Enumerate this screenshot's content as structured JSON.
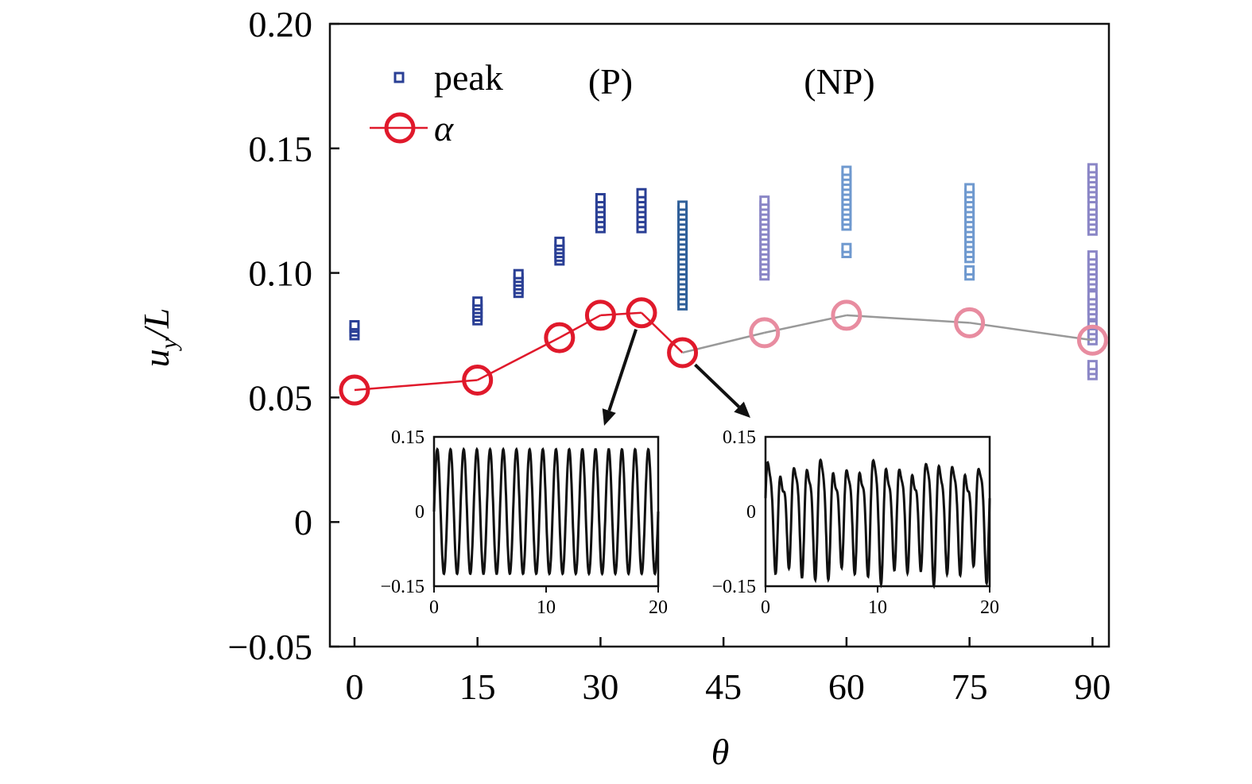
{
  "chart_data": {
    "type": "scatter",
    "xlabel": "θ",
    "ylabel_main": "u",
    "ylabel_sub": "y",
    "ylabel_tail": "/L",
    "xlim": [
      -3,
      92
    ],
    "ylim": [
      -0.05,
      0.2
    ],
    "x_ticks": [
      0,
      15,
      30,
      45,
      60,
      75,
      90
    ],
    "x_tick_labels": [
      "0",
      "15",
      "30",
      "45",
      "60",
      "75",
      "90"
    ],
    "y_ticks": [
      -0.05,
      0,
      0.05,
      0.1,
      0.15,
      0.2
    ],
    "y_tick_labels": [
      "−0.05",
      "0",
      "0.05",
      "0.10",
      "0.15",
      "0.20"
    ],
    "region_labels": [
      {
        "text": "(P)",
        "x": 32,
        "y": 0.18
      },
      {
        "text": "(NP)",
        "x": 59.5,
        "y": 0.18
      }
    ],
    "legend": {
      "placement": "top-left",
      "entries": [
        {
          "label": "peak",
          "marker": "small-square",
          "color": "#2a3f95"
        },
        {
          "label": "α",
          "marker": "circle-line",
          "color": "#e0192b"
        }
      ]
    },
    "series": [
      {
        "name": "α",
        "type": "line",
        "x": [
          0,
          15,
          25,
          30,
          35,
          40,
          50,
          60,
          75,
          90
        ],
        "y": [
          0.053,
          0.057,
          0.074,
          0.083,
          0.084,
          0.068,
          0.076,
          0.083,
          0.08,
          0.073
        ],
        "colors": [
          "#e0192b",
          "#e0192b",
          "#e0192b",
          "#e0192b",
          "#e0192b",
          "#e0192b",
          "#e88ca0",
          "#e88ca0",
          "#e88ca0",
          "#e88ca0"
        ],
        "segment_colors": [
          "#e0192b",
          "#e0192b",
          "#e0192b",
          "#e0192b",
          "#e0192b",
          "#999999",
          "#999999",
          "#999999",
          "#999999"
        ]
      },
      {
        "name": "peak",
        "type": "scatter",
        "points": [
          {
            "x": 0,
            "y": [
              0.075,
              0.0765,
              0.078,
              0.079
            ],
            "color": "#2a3f95"
          },
          {
            "x": 15,
            "y": [
              0.081,
              0.0825,
              0.084,
              0.0855,
              0.087,
              0.0885
            ],
            "color": "#2a3f95"
          },
          {
            "x": 20,
            "y": [
              0.092,
              0.0935,
              0.095,
              0.0965,
              0.098,
              0.0995
            ],
            "color": "#2a3f95"
          },
          {
            "x": 25,
            "y": [
              0.105,
              0.1065,
              0.108,
              0.1095,
              0.111,
              0.1125
            ],
            "color": "#2a3f95"
          },
          {
            "x": 30,
            "y": [
              0.118,
              0.12,
              0.122,
              0.124,
              0.126,
              0.128,
              0.13
            ],
            "color": "#2a3f95"
          },
          {
            "x": 35,
            "y": [
              0.118,
              0.12,
              0.122,
              0.124,
              0.126,
              0.128,
              0.13,
              0.132
            ],
            "color": "#2a3f95"
          },
          {
            "x": 40,
            "y": [
              0.087,
              0.089,
              0.091,
              0.093,
              0.095,
              0.097,
              0.099,
              0.101,
              0.103,
              0.105,
              0.107,
              0.109,
              0.111,
              0.113,
              0.115,
              0.117,
              0.119,
              0.121,
              0.123,
              0.125,
              0.127
            ],
            "color": "#2f5f99"
          },
          {
            "x": 50,
            "y": [
              0.099,
              0.101,
              0.103,
              0.105,
              0.107,
              0.109,
              0.111,
              0.113,
              0.115,
              0.117,
              0.119,
              0.121,
              0.123,
              0.125,
              0.127,
              0.129
            ],
            "color": "#8a86c6"
          },
          {
            "x": 60,
            "y": [
              0.108,
              0.11,
              0.119,
              0.121,
              0.123,
              0.125,
              0.127,
              0.129,
              0.131,
              0.133,
              0.135,
              0.137,
              0.139,
              0.141
            ],
            "color": "#6f99cf"
          },
          {
            "x": 75,
            "y": [
              0.099,
              0.101,
              0.106,
              0.108,
              0.11,
              0.112,
              0.114,
              0.116,
              0.118,
              0.12,
              0.122,
              0.124,
              0.126,
              0.128,
              0.13,
              0.132,
              0.134
            ],
            "color": "#6f99cf"
          },
          {
            "x": 90,
            "y": [
              0.059,
              0.061,
              0.063,
              0.073,
              0.075,
              0.077,
              0.079,
              0.083,
              0.085,
              0.087,
              0.089,
              0.091,
              0.095,
              0.097,
              0.099,
              0.101,
              0.103,
              0.105,
              0.107,
              0.117,
              0.119,
              0.121,
              0.123,
              0.125,
              0.127,
              0.13,
              0.132,
              0.134,
              0.136,
              0.138,
              0.14,
              0.142
            ],
            "color": "#8a86c6"
          }
        ]
      }
    ],
    "insets": [
      {
        "name": "periodic",
        "xlim": [
          0,
          20
        ],
        "ylim": [
          -0.15,
          0.15
        ],
        "x_ticks": [
          0,
          10,
          20
        ],
        "x_tick_labels": [
          "0",
          "10",
          "20"
        ],
        "y_ticks": [
          -0.15,
          0,
          0.15
        ],
        "y_tick_labels": [
          "−0.15",
          "0",
          "0.15"
        ],
        "periods": 17,
        "amplitude": 0.125,
        "modulation": 0.0,
        "second_harmonic": 0.0,
        "arrow_from": {
          "x": 35,
          "y": 0.084
        }
      },
      {
        "name": "non-periodic",
        "xlim": [
          0,
          20
        ],
        "ylim": [
          -0.15,
          0.15
        ],
        "x_ticks": [
          0,
          10,
          20
        ],
        "x_tick_labels": [
          "0",
          "10",
          "20"
        ],
        "y_ticks": [
          -0.15,
          0,
          0.15
        ],
        "y_tick_labels": [
          "−0.15",
          "0",
          "0.15"
        ],
        "periods": 17,
        "amplitude": 0.1,
        "modulation": 0.025,
        "second_harmonic": 0.03,
        "arrow_from": {
          "x": 40,
          "y": 0.068
        }
      }
    ]
  }
}
